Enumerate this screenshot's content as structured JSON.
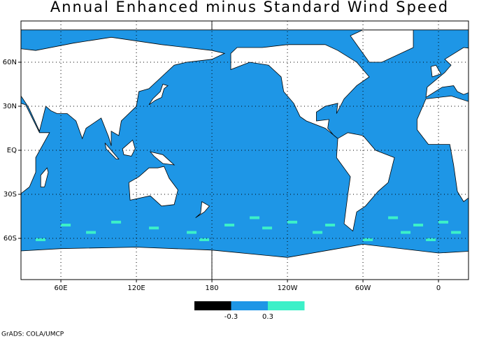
{
  "title": "Annual Enhanced minus Standard Wind Speed",
  "map": {
    "xticks": [
      {
        "value": 60,
        "label": "60E"
      },
      {
        "value": 120,
        "label": "120E"
      },
      180,
      {
        "value": -120,
        "label": "120W"
      },
      {
        "value": -60,
        "label": "60W"
      },
      0
    ],
    "yticks": [
      {
        "value": 60,
        "label": "60N"
      },
      {
        "value": 30,
        "label": "30N"
      },
      {
        "value": 0,
        "label": "EQ"
      },
      {
        "value": -30,
        "label": "30S"
      },
      {
        "value": -60,
        "label": "60S"
      }
    ],
    "grid": true
  },
  "colorbar": {
    "levels": [
      -0.3,
      0.3
    ],
    "colors": [
      "#000000",
      "#1e96e6",
      "#3cf0c8"
    ]
  },
  "footer": "GrADS: COLA/UMCP"
}
